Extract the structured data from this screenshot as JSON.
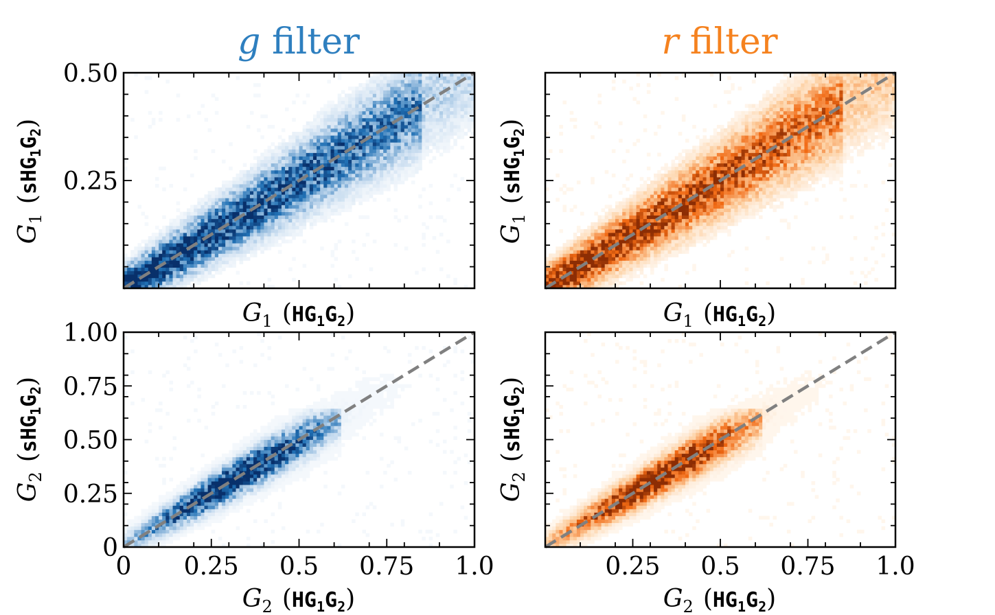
{
  "columns": [
    {
      "title_var": "g",
      "title_word": "filter",
      "color": "#2e7fbf"
    },
    {
      "title_var": "r",
      "title_word": "filter",
      "color": "#f5821f"
    }
  ],
  "colors": {
    "blue_dark": "#08306b",
    "blue_mid": "#2171b5",
    "blue_light": "#c6dbef",
    "orange_dark": "#8c2d04",
    "orange_mid": "#f16913",
    "orange_light": "#fdd0a2",
    "diagonal": "#808080"
  },
  "labels": {
    "top_y": {
      "var": "G",
      "sub": "1",
      "paren_open": "(",
      "model": "sHG",
      "model_sub": "1",
      "model_tail": "G",
      "model_tail_sub": "2",
      "paren_close": ")"
    },
    "top_x": {
      "var": "G",
      "sub": "1",
      "paren_open": "(",
      "model": "HG",
      "model_sub": "1",
      "model_tail": "G",
      "model_tail_sub": "2",
      "paren_close": ")"
    },
    "bottom_y": {
      "var": "G",
      "sub": "2",
      "paren_open": "(",
      "model": "sHG",
      "model_sub": "1",
      "model_tail": "G",
      "model_tail_sub": "2",
      "paren_close": ")"
    },
    "bottom_x": {
      "var": "G",
      "sub": "2",
      "paren_open": "(",
      "model": "HG",
      "model_sub": "1",
      "model_tail": "G",
      "model_tail_sub": "2",
      "paren_close": ")"
    }
  },
  "chart_data": [
    {
      "type": "heatmap",
      "panel": "top-left",
      "filter": "g",
      "colormap": "Blues",
      "xlabel": "G1 (HG1G2)",
      "ylabel": "G1 (sHG1G2)",
      "xlim": [
        0,
        0.5
      ],
      "ylim": [
        0,
        0.5
      ],
      "xticks": [],
      "yticks": [
        "0.25",
        "0.50"
      ],
      "ytick_values": [
        0.25,
        0.5
      ],
      "density_ridge": "y = x",
      "reference_line": "y = x (dashed)"
    },
    {
      "type": "heatmap",
      "panel": "top-right",
      "filter": "r",
      "colormap": "Oranges",
      "xlabel": "G1 (HG1G2)",
      "ylabel": "G1 (sHG1G2)",
      "xlim": [
        0,
        0.5
      ],
      "ylim": [
        0,
        0.5
      ],
      "xticks": [],
      "yticks": [],
      "density_ridge": "y = x",
      "reference_line": "y = x (dashed)"
    },
    {
      "type": "heatmap",
      "panel": "bottom-left",
      "filter": "g",
      "colormap": "Blues",
      "xlabel": "G2 (HG1G2)",
      "ylabel": "G2 (sHG1G2)",
      "xlim": [
        0,
        1.0
      ],
      "ylim": [
        0,
        1.0
      ],
      "xticks": [
        "0",
        "0.25",
        "0.5",
        "0.75",
        "1.0"
      ],
      "xtick_values": [
        0,
        0.25,
        0.5,
        0.75,
        1.0
      ],
      "yticks": [
        "0",
        "0.25",
        "0.50",
        "0.75",
        "1.00"
      ],
      "ytick_values": [
        0,
        0.25,
        0.5,
        0.75,
        1.0
      ],
      "density_ridge": "y = x, concentrated 0 to 0.6",
      "reference_line": "y = x (dashed)"
    },
    {
      "type": "heatmap",
      "panel": "bottom-right",
      "filter": "r",
      "colormap": "Oranges",
      "xlabel": "G2 (HG1G2)",
      "ylabel": "G2 (sHG1G2)",
      "xlim": [
        0,
        1.0
      ],
      "ylim": [
        0,
        1.0
      ],
      "xticks": [
        "0.25",
        "0.5",
        "0.75",
        "1.0"
      ],
      "xtick_values": [
        0.25,
        0.5,
        0.75,
        1.0
      ],
      "yticks": [],
      "density_ridge": "y = x, concentrated 0 to 0.6",
      "reference_line": "y = x (dashed)"
    }
  ]
}
